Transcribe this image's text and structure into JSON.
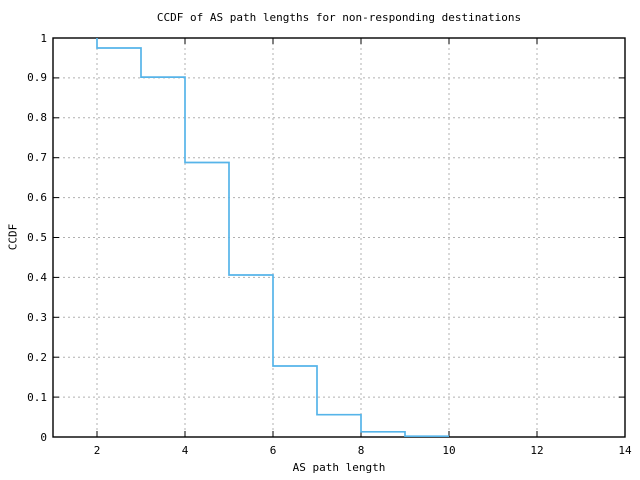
{
  "chart_data": {
    "type": "line",
    "style": "step",
    "title": "CCDF of AS path lengths for non-responding destinations",
    "xlabel": "AS path length",
    "ylabel": "CCDF",
    "xlim": [
      1,
      14
    ],
    "ylim": [
      0,
      1
    ],
    "x_ticks": [
      2,
      4,
      6,
      8,
      10,
      12,
      14
    ],
    "x_tick_labels": [
      "2",
      "4",
      "6",
      "8",
      "10",
      "12",
      "14"
    ],
    "y_ticks": [
      0,
      0.1,
      0.2,
      0.3,
      0.4,
      0.5,
      0.6,
      0.7,
      0.8,
      0.9,
      1
    ],
    "y_tick_labels": [
      "0",
      "0.1",
      "0.2",
      "0.3",
      "0.4",
      "0.5",
      "0.6",
      "0.7",
      "0.8",
      "0.9",
      "1"
    ],
    "grid": {
      "show": true,
      "style": "dashed",
      "on_x_ticks": true,
      "on_y_ticks": true
    },
    "legend": {
      "show": false
    },
    "colors": {
      "line": "#56b4e9",
      "grid": "#b0b0b0",
      "axis": "#000000",
      "background": "#ffffff"
    },
    "series": [
      {
        "name": "CCDF",
        "points": [
          [
            2,
            1.0
          ],
          [
            2,
            0.975
          ],
          [
            3,
            0.975
          ],
          [
            3,
            0.902
          ],
          [
            4,
            0.902
          ],
          [
            4,
            0.688
          ],
          [
            5,
            0.688
          ],
          [
            5,
            0.406
          ],
          [
            6,
            0.406
          ],
          [
            6,
            0.178
          ],
          [
            7,
            0.178
          ],
          [
            7,
            0.056
          ],
          [
            8,
            0.056
          ],
          [
            8,
            0.013
          ],
          [
            9,
            0.013
          ],
          [
            9,
            0.002
          ],
          [
            10,
            0.002
          ]
        ]
      }
    ]
  }
}
